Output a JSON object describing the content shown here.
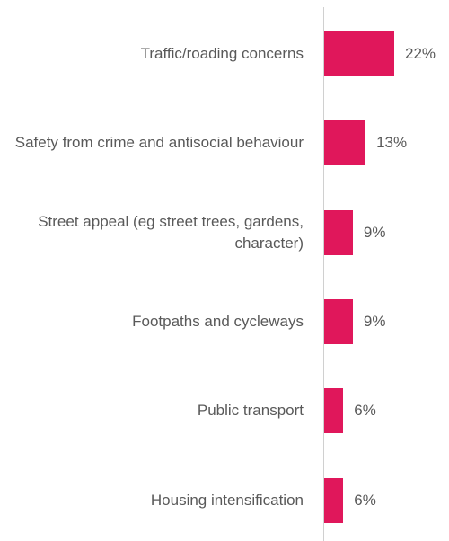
{
  "chart_data": {
    "type": "bar",
    "orientation": "horizontal",
    "color": "#e0175b",
    "categories": [
      "Traffic/roading concerns",
      "Safety from crime and antisocial behaviour",
      "Street appeal (eg street trees, gardens, character)",
      "Footpaths and cycleways",
      "Public transport",
      "Housing intensification"
    ],
    "values": [
      22,
      13,
      9,
      9,
      6,
      6
    ],
    "value_labels": [
      "22%",
      "13%",
      "9%",
      "9%",
      "6%",
      "6%"
    ]
  }
}
